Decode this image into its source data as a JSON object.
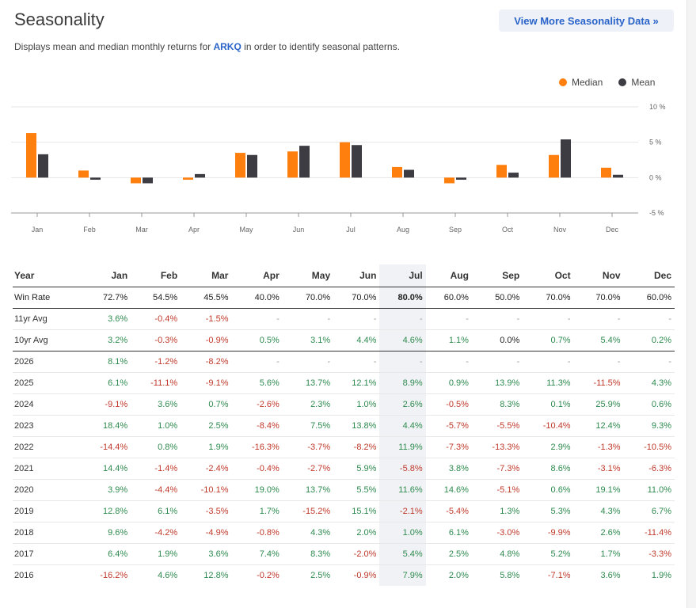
{
  "header": {
    "title": "Seasonality",
    "more_button": "View More Seasonality Data »",
    "subtitle_pre": "Displays mean and median monthly returns for",
    "ticker": "ARKQ",
    "subtitle_post": "in order to identify seasonal patterns."
  },
  "legend": {
    "median": "Median",
    "mean": "Mean"
  },
  "colors": {
    "median": "#ff7f0e",
    "mean": "#3c3c42",
    "positive": "#2e8a4f",
    "negative": "#c0392b",
    "highlight": "#f0f2f5"
  },
  "chart_data": {
    "type": "bar",
    "categories": [
      "Jan",
      "Feb",
      "Mar",
      "Apr",
      "May",
      "Jun",
      "Jul",
      "Aug",
      "Sep",
      "Oct",
      "Nov",
      "Dec"
    ],
    "series": [
      {
        "name": "Median",
        "values": [
          6.3,
          1.0,
          -0.8,
          -0.3,
          3.5,
          3.7,
          5.0,
          1.5,
          -0.8,
          1.8,
          3.2,
          1.4
        ]
      },
      {
        "name": "Mean",
        "values": [
          3.3,
          -0.3,
          -0.8,
          0.5,
          3.2,
          4.5,
          4.6,
          1.1,
          -0.3,
          0.7,
          5.4,
          0.4
        ]
      }
    ],
    "ylim": [
      -5,
      10
    ],
    "yticks": [
      "10 %",
      "5 %",
      "0 %",
      "-5 %"
    ],
    "ytick_values": [
      10,
      5,
      0,
      -5
    ],
    "legend_position": "top-right"
  },
  "table": {
    "header": [
      "Year",
      "Jan",
      "Feb",
      "Mar",
      "Apr",
      "May",
      "Jun",
      "Jul",
      "Aug",
      "Sep",
      "Oct",
      "Nov",
      "Dec"
    ],
    "highlight_column": 7,
    "rows": [
      {
        "label": "Win Rate",
        "type": "winrate",
        "cells": [
          "72.7%",
          "54.5%",
          "45.5%",
          "40.0%",
          "70.0%",
          "70.0%",
          "80.0%",
          "60.0%",
          "50.0%",
          "70.0%",
          "70.0%",
          "60.0%"
        ]
      },
      {
        "label": "11yr Avg",
        "type": "avg",
        "cells": [
          "3.6%",
          "-0.4%",
          "-1.5%",
          "-",
          "-",
          "-",
          "-",
          "-",
          "-",
          "-",
          "-",
          "-"
        ]
      },
      {
        "label": "10yr Avg",
        "type": "tenyr",
        "cells": [
          "3.2%",
          "-0.3%",
          "-0.9%",
          "0.5%",
          "3.1%",
          "4.4%",
          "4.6%",
          "1.1%",
          "0.0%",
          "0.7%",
          "5.4%",
          "0.2%"
        ]
      },
      {
        "label": "2026",
        "type": "year",
        "cells": [
          "8.1%",
          "-1.2%",
          "-8.2%",
          "-",
          "-",
          "-",
          "-",
          "-",
          "-",
          "-",
          "-",
          "-"
        ]
      },
      {
        "label": "2025",
        "type": "year",
        "cells": [
          "6.1%",
          "-11.1%",
          "-9.1%",
          "5.6%",
          "13.7%",
          "12.1%",
          "8.9%",
          "0.9%",
          "13.9%",
          "11.3%",
          "-11.5%",
          "4.3%"
        ]
      },
      {
        "label": "2024",
        "type": "year",
        "cells": [
          "-9.1%",
          "3.6%",
          "0.7%",
          "-2.6%",
          "2.3%",
          "1.0%",
          "2.6%",
          "-0.5%",
          "8.3%",
          "0.1%",
          "25.9%",
          "0.6%"
        ]
      },
      {
        "label": "2023",
        "type": "year",
        "cells": [
          "18.4%",
          "1.0%",
          "2.5%",
          "-8.4%",
          "7.5%",
          "13.8%",
          "4.4%",
          "-5.7%",
          "-5.5%",
          "-10.4%",
          "12.4%",
          "9.3%"
        ]
      },
      {
        "label": "2022",
        "type": "year",
        "cells": [
          "-14.4%",
          "0.8%",
          "1.9%",
          "-16.3%",
          "-3.7%",
          "-8.2%",
          "11.9%",
          "-7.3%",
          "-13.3%",
          "2.9%",
          "-1.3%",
          "-10.5%"
        ]
      },
      {
        "label": "2021",
        "type": "year",
        "cells": [
          "14.4%",
          "-1.4%",
          "-2.4%",
          "-0.4%",
          "-2.7%",
          "5.9%",
          "-5.8%",
          "3.8%",
          "-7.3%",
          "8.6%",
          "-3.1%",
          "-6.3%"
        ]
      },
      {
        "label": "2020",
        "type": "year",
        "cells": [
          "3.9%",
          "-4.4%",
          "-10.1%",
          "19.0%",
          "13.7%",
          "5.5%",
          "11.6%",
          "14.6%",
          "-5.1%",
          "0.6%",
          "19.1%",
          "11.0%"
        ]
      },
      {
        "label": "2019",
        "type": "year",
        "cells": [
          "12.8%",
          "6.1%",
          "-3.5%",
          "1.7%",
          "-15.2%",
          "15.1%",
          "-2.1%",
          "-5.4%",
          "1.3%",
          "5.3%",
          "4.3%",
          "6.7%"
        ]
      },
      {
        "label": "2018",
        "type": "year",
        "cells": [
          "9.6%",
          "-4.2%",
          "-4.9%",
          "-0.8%",
          "4.3%",
          "2.0%",
          "1.0%",
          "6.1%",
          "-3.0%",
          "-9.9%",
          "2.6%",
          "-11.4%"
        ]
      },
      {
        "label": "2017",
        "type": "year",
        "cells": [
          "6.4%",
          "1.9%",
          "3.6%",
          "7.4%",
          "8.3%",
          "-2.0%",
          "5.4%",
          "2.5%",
          "4.8%",
          "5.2%",
          "1.7%",
          "-3.3%"
        ]
      },
      {
        "label": "2016",
        "type": "year",
        "cells": [
          "-16.2%",
          "4.6%",
          "12.8%",
          "-0.2%",
          "2.5%",
          "-0.9%",
          "7.9%",
          "2.0%",
          "5.8%",
          "-7.1%",
          "3.6%",
          "1.9%"
        ]
      }
    ]
  }
}
